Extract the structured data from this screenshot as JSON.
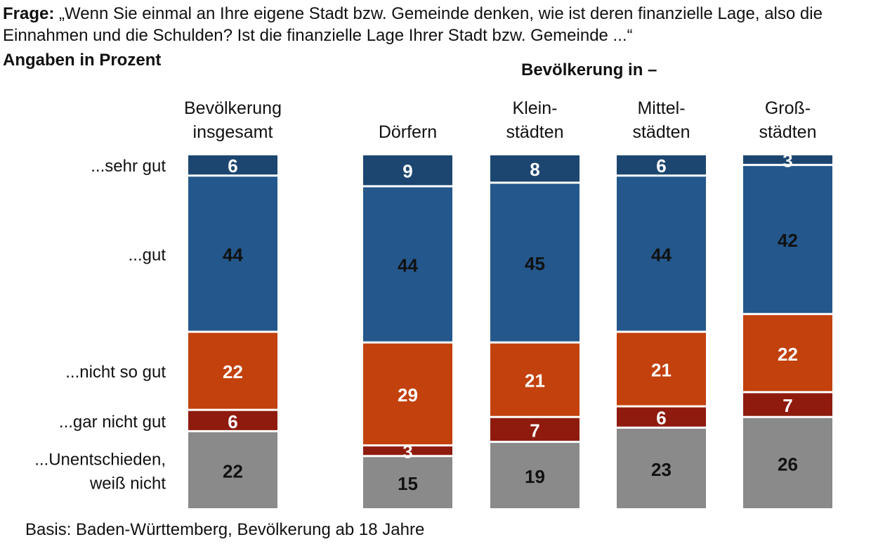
{
  "header": {
    "question_lead": "Frage:",
    "question_text": "„Wenn Sie einmal an Ihre eigene Stadt bzw. Gemeinde denken, wie ist deren finanzielle Lage, also die Einnahmen und die Schulden? Ist die finanzielle Lage Ihrer Stadt bzw. Gemeinde ...“",
    "subtitle": "Angaben in Prozent",
    "group_title": "Bevölkerung in –"
  },
  "footer": {
    "basis": "Basis: Baden-Württemberg, Bevölkerung ab 18 Jahre"
  },
  "colors": {
    "sehr_gut": "#1c4670",
    "gut": "#24578b",
    "nicht_so_gut": "#c2410c",
    "gar_nicht_gut": "#8e1b0e",
    "unentschieden": "#8a8a8a"
  },
  "chart_data": {
    "type": "bar",
    "stacked": true,
    "orientation": "vertical",
    "unit": "%",
    "categories": [
      [
        "Bevölkerung",
        "insgesamt"
      ],
      [
        "Dörfern"
      ],
      [
        "Klein-",
        "städten"
      ],
      [
        "Mittel-",
        "städten"
      ],
      [
        "Groß-",
        "städten"
      ]
    ],
    "series": [
      {
        "name": "...sehr gut",
        "values": [
          6,
          9,
          8,
          6,
          3
        ]
      },
      {
        "name": "...gut",
        "values": [
          44,
          44,
          45,
          44,
          42
        ]
      },
      {
        "name": "...nicht so gut",
        "values": [
          22,
          29,
          21,
          21,
          22
        ]
      },
      {
        "name": "...gar nicht gut",
        "values": [
          6,
          3,
          7,
          6,
          7
        ]
      },
      {
        "name": [
          "...Unentschieden,",
          "weiß nicht"
        ],
        "values": [
          22,
          15,
          19,
          23,
          26
        ]
      }
    ]
  }
}
